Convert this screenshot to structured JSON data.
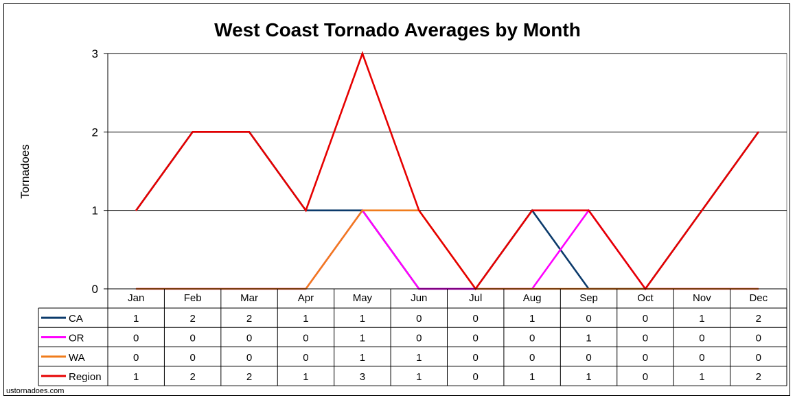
{
  "chart_data": {
    "type": "line",
    "title": "West Coast Tornado Averages by Month",
    "xlabel": "",
    "ylabel": "Tornadoes",
    "ylim": [
      0,
      3
    ],
    "yticks": [
      0,
      1,
      2,
      3
    ],
    "grid": true,
    "legend": "data-table",
    "categories": [
      "Jan",
      "Feb",
      "Mar",
      "Apr",
      "May",
      "Jun",
      "Jul",
      "Aug",
      "Sep",
      "Oct",
      "Nov",
      "Dec"
    ],
    "series": [
      {
        "name": "CA",
        "color": "#0b3a6b",
        "values": [
          1,
          2,
          2,
          1,
          1,
          0,
          0,
          1,
          0,
          0,
          1,
          2
        ]
      },
      {
        "name": "OR",
        "color": "#ff00ff",
        "values": [
          0,
          0,
          0,
          0,
          1,
          0,
          0,
          0,
          1,
          0,
          0,
          0
        ]
      },
      {
        "name": "WA",
        "color": "#f07c1c",
        "values": [
          0,
          0,
          0,
          0,
          1,
          1,
          0,
          0,
          0,
          0,
          0,
          0
        ]
      },
      {
        "name": "Region",
        "color": "#e60000",
        "values": [
          1,
          2,
          2,
          1,
          3,
          1,
          0,
          1,
          1,
          0,
          1,
          2
        ]
      }
    ]
  },
  "footer": {
    "source": "ustornadoes.com"
  }
}
